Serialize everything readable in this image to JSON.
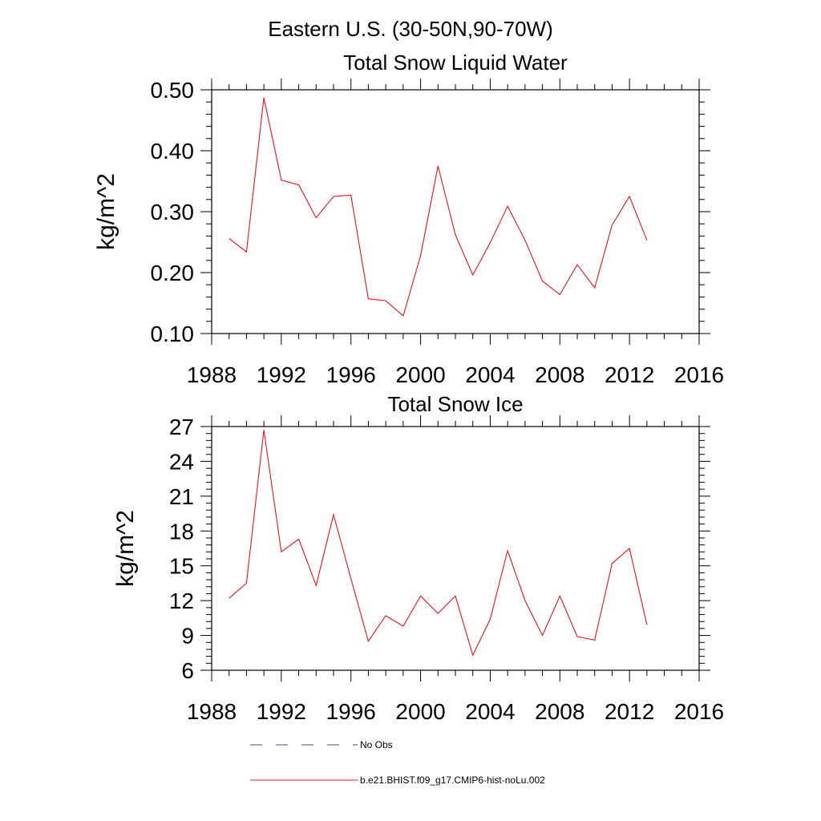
{
  "figure": {
    "suptitle": "Eastern U.S. (30-50N,90-70W)",
    "series_color": "#e8141b"
  },
  "chart_data": [
    {
      "type": "line",
      "title": "Total Snow Liquid Water",
      "xlabel": "",
      "ylabel": "kg/m^2",
      "xlim": [
        1988,
        2016
      ],
      "ylim": [
        0.1,
        0.5
      ],
      "xticks": [
        1988,
        1992,
        1996,
        2000,
        2004,
        2008,
        2012,
        2016
      ],
      "xtick_labels": [
        "1988",
        "1992",
        "1996",
        "2000",
        "2004",
        "2008",
        "2012",
        "2016"
      ],
      "yticks": [
        0.1,
        0.2,
        0.3,
        0.4,
        0.5
      ],
      "ytick_labels": [
        "0.10",
        "0.20",
        "0.30",
        "0.40",
        "0.50"
      ],
      "x": [
        1989,
        1990,
        1991,
        1992,
        1993,
        1994,
        1995,
        1996,
        1997,
        1998,
        1999,
        2000,
        2001,
        2002,
        2003,
        2004,
        2005,
        2006,
        2007,
        2008,
        2009,
        2010,
        2011,
        2012,
        2013
      ],
      "series": [
        {
          "name": "b.e21.BHIST.f09_g17.CMIP6-hist-noLu.002",
          "color": "#e8141b",
          "values": [
            0.256,
            0.234,
            0.487,
            0.352,
            0.344,
            0.29,
            0.325,
            0.327,
            0.157,
            0.154,
            0.129,
            0.228,
            0.375,
            0.262,
            0.196,
            0.249,
            0.309,
            0.253,
            0.186,
            0.164,
            0.213,
            0.175,
            0.278,
            0.325,
            0.253
          ]
        }
      ]
    },
    {
      "type": "line",
      "title": "Total Snow Ice",
      "xlabel": "",
      "ylabel": "kg/m^2",
      "xlim": [
        1988,
        2016
      ],
      "ylim": [
        6,
        27
      ],
      "xticks": [
        1988,
        1992,
        1996,
        2000,
        2004,
        2008,
        2012,
        2016
      ],
      "xtick_labels": [
        "1988",
        "1992",
        "1996",
        "2000",
        "2004",
        "2008",
        "2012",
        "2016"
      ],
      "yticks": [
        6,
        9,
        12,
        15,
        18,
        21,
        24,
        27
      ],
      "ytick_labels": [
        "6",
        "9",
        "12",
        "15",
        "18",
        "21",
        "24",
        "27"
      ],
      "x": [
        1989,
        1990,
        1991,
        1992,
        1993,
        1994,
        1995,
        1996,
        1997,
        1998,
        1999,
        2000,
        2001,
        2002,
        2003,
        2004,
        2005,
        2006,
        2007,
        2008,
        2009,
        2010,
        2011,
        2012,
        2013
      ],
      "series": [
        {
          "name": "b.e21.BHIST.f09_g17.CMIP6-hist-noLu.002",
          "color": "#e8141b",
          "values": [
            12.2,
            13.5,
            26.7,
            16.2,
            17.3,
            13.3,
            19.4,
            13.9,
            8.5,
            10.7,
            9.8,
            12.4,
            10.9,
            12.4,
            7.3,
            10.4,
            16.3,
            12.0,
            9.0,
            12.4,
            8.9,
            8.6,
            15.2,
            16.5,
            9.9
          ]
        }
      ]
    }
  ],
  "legend": {
    "placement": "bottom-center",
    "items": [
      {
        "label": "No Obs",
        "style": "dashed",
        "color": "#4a4a6a"
      },
      {
        "label": "b.e21.BHIST.f09_g17.CMIP6-hist-noLu.002",
        "style": "solid",
        "color": "#e8141b"
      }
    ]
  }
}
